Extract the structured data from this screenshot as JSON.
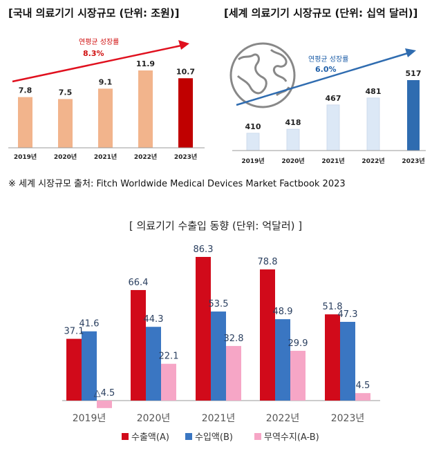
{
  "colors": {
    "domestic_bar": "#f2b48c",
    "domestic_highlight": "#c00000",
    "world_bar": "#dce8f6",
    "world_highlight": "#2f6cb0",
    "export": "#d10a1a",
    "import": "#3a76c2",
    "balance": "#f6a6c6",
    "arrow_red": "#e0101e",
    "arrow_blue": "#2f6cb0"
  },
  "source_note": "※ 세계 시장규모 출처: Fitch Worldwide Medical Devices Market Factbook 2023",
  "chart_data": [
    {
      "type": "bar",
      "title": "[국내 의료기기 시장규모 (단위: 조원)]",
      "categories": [
        "2019년",
        "2020년",
        "2021년",
        "2022년",
        "2023년"
      ],
      "values": [
        7.8,
        7.5,
        9.1,
        11.9,
        10.7
      ],
      "value_labels": [
        "7.8",
        "7.5",
        "9.1",
        "11.9",
        "10.7"
      ],
      "growth_label": "연평균 성장률",
      "growth_value": "8.3%",
      "ylim": [
        0,
        12
      ]
    },
    {
      "type": "bar",
      "title": "[세계 의료기기 시장규모 (단위: 십억 달러)]",
      "categories": [
        "2019년",
        "2020년",
        "2021년",
        "2022년",
        "2023년"
      ],
      "values": [
        410,
        418,
        467,
        481,
        517
      ],
      "value_labels": [
        "410",
        "418",
        "467",
        "481",
        "517"
      ],
      "growth_label": "연평균 성장률",
      "growth_value": "6.0%",
      "ylim": [
        0,
        520
      ]
    },
    {
      "type": "bar",
      "title": "[ 의료기기 수출입 동향 (단위: 억달러) ]",
      "categories": [
        "2019년",
        "2020년",
        "2021년",
        "2022년",
        "2023년"
      ],
      "series": [
        {
          "name": "수출액(A)",
          "values": [
            37.1,
            66.4,
            86.3,
            78.8,
            51.8
          ],
          "labels": [
            "37.1",
            "66.4",
            "86.3",
            "78.8",
            "51.8"
          ]
        },
        {
          "name": "수입액(B)",
          "values": [
            41.6,
            44.3,
            53.5,
            48.9,
            47.3
          ],
          "labels": [
            "41.6",
            "44.3",
            "53.5",
            "48.9",
            "47.3"
          ]
        },
        {
          "name": "무역수지(A-B)",
          "values": [
            -4.5,
            22.1,
            32.8,
            29.9,
            4.5
          ],
          "labels": [
            "△4.5",
            "22.1",
            "32.8",
            "29.9",
            "4.5"
          ]
        }
      ],
      "ylim": [
        -4.5,
        86.3
      ]
    }
  ]
}
